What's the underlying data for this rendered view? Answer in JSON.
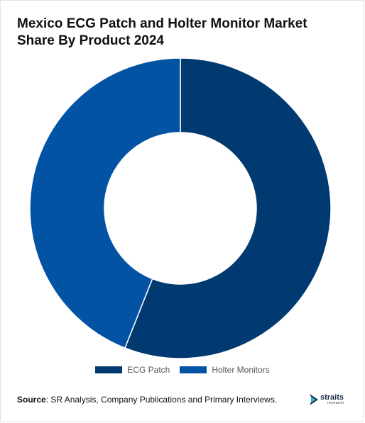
{
  "title": "Mexico ECG Patch and Holter Monitor Market Share By Product 2024",
  "chart_data": {
    "type": "pie",
    "donut": true,
    "categories": [
      "ECG Patch",
      "Holter Monitors"
    ],
    "values": [
      56,
      44
    ],
    "colors": [
      "#003a70",
      "#0353a4"
    ],
    "legend_position": "bottom-center"
  },
  "source": {
    "label": "Source",
    "text": ": SR Analysis, Company Publications and Primary Interviews."
  },
  "logo": {
    "word": "straits",
    "sub": "research"
  }
}
